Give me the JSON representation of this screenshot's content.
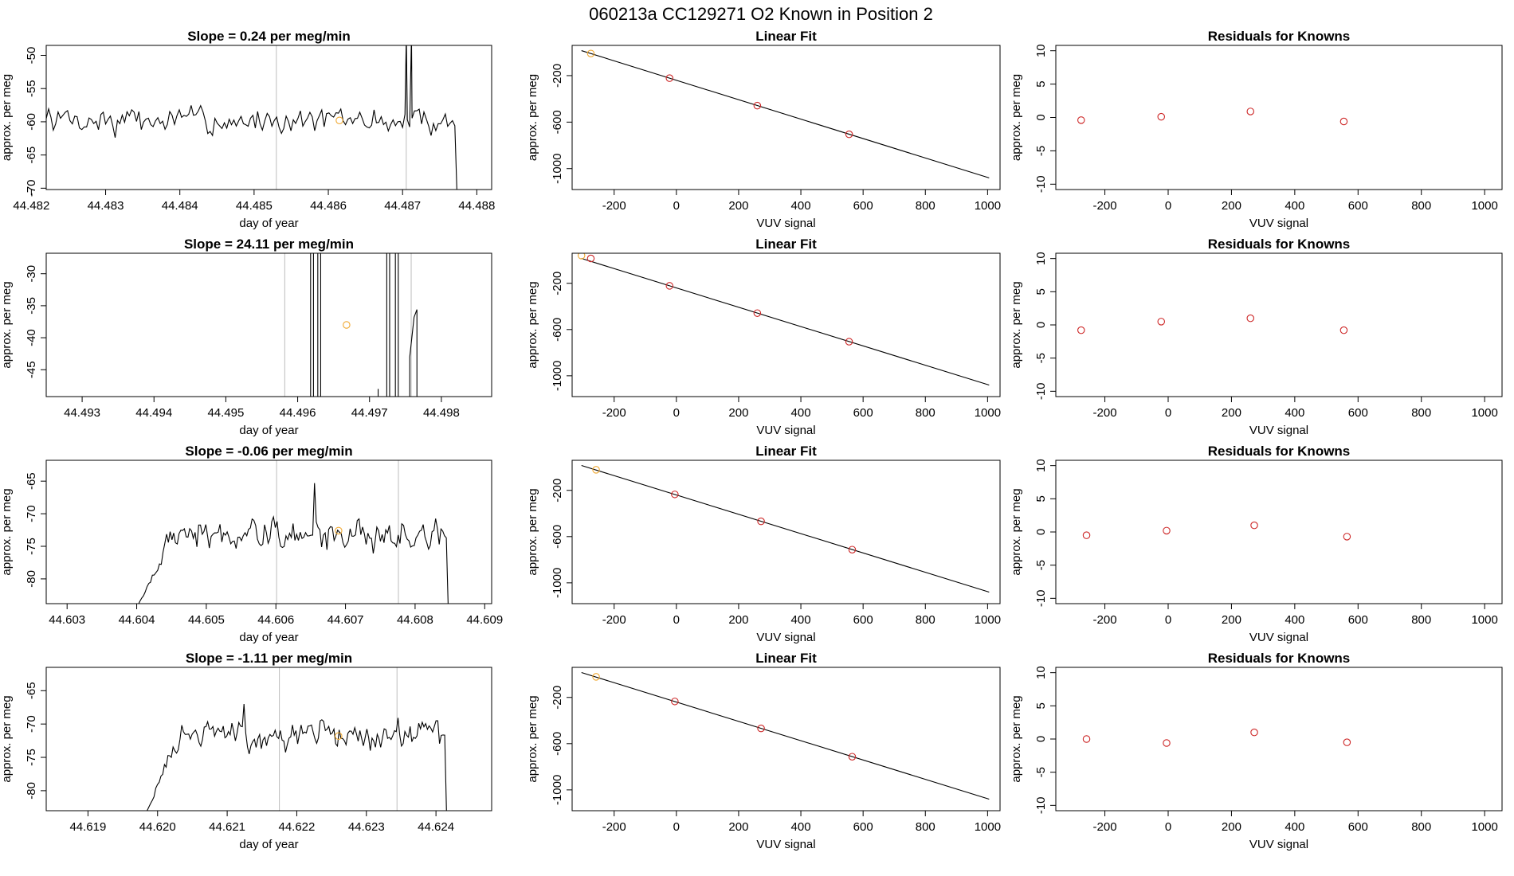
{
  "figure_title": "060213a      CC129271    O2 Known in Position  2",
  "colors": {
    "ink": "#000000",
    "vline": "#bdbdbd",
    "known_point": "#cd2626",
    "orange_point": "#f0a830"
  },
  "chart_data": [
    {
      "type": "line",
      "row": 0,
      "col": 0,
      "title": "Slope =  0.24  per meg/min",
      "xlabel": "day of year",
      "ylabel": "approx. per meg",
      "xlim": [
        44.4822,
        44.4882
      ],
      "ylim": [
        -70.2,
        -48.5
      ],
      "xticks": [
        "44.482",
        "44.483",
        "44.484",
        "44.485",
        "44.486",
        "44.487",
        "44.488"
      ],
      "yticks": [
        "-50",
        "-55",
        "-60",
        "-65",
        "-70"
      ],
      "vlines": [
        44.4853,
        44.48705
      ],
      "trace": {
        "start": 44.4822,
        "end": 44.4878,
        "base": -59.8,
        "amp": 2.4,
        "seed": 7,
        "spikes": [
          [
            44.48705,
            44.48712,
            -47
          ]
        ],
        "tail_from": 44.48772,
        "tail_to": -72
      },
      "points": [
        {
          "x": 44.48615,
          "y": -59.8,
          "color": "orange"
        }
      ]
    },
    {
      "type": "linear_fit",
      "row": 0,
      "col": 1,
      "title": "Linear Fit",
      "xlabel": "VUV signal",
      "ylabel": "approx. per meg",
      "xlim": [
        -335,
        1040
      ],
      "ylim": [
        -1180,
        60
      ],
      "xticks": [
        "-200",
        "0",
        "200",
        "400",
        "600",
        "800",
        "1000"
      ],
      "yticks": [
        "-200",
        "-600",
        "-1000"
      ],
      "line": {
        "x": [
          -305,
          1005
        ],
        "y": [
          15,
          -1080
        ]
      },
      "points": [
        {
          "x": -275,
          "y": -10,
          "color": "orange"
        },
        {
          "x": -22,
          "y": -222,
          "color": "red"
        },
        {
          "x": 260,
          "y": -458,
          "color": "red"
        },
        {
          "x": 555,
          "y": -705,
          "color": "red"
        }
      ]
    },
    {
      "type": "scatter",
      "row": 0,
      "col": 2,
      "title": "Residuals for Knowns",
      "xlabel": "VUV signal",
      "ylabel": "approx. per meg",
      "xlim": [
        -355,
        1055
      ],
      "ylim": [
        -10.8,
        10.8
      ],
      "xticks": [
        "-200",
        "0",
        "200",
        "400",
        "600",
        "800",
        "1000"
      ],
      "yticks": [
        "10",
        "5",
        "0",
        "-5",
        "-10"
      ],
      "points": [
        {
          "x": -275,
          "y": -0.4,
          "color": "red"
        },
        {
          "x": -22,
          "y": 0.1,
          "color": "red"
        },
        {
          "x": 260,
          "y": 0.9,
          "color": "red"
        },
        {
          "x": 555,
          "y": -0.6,
          "color": "red"
        }
      ]
    },
    {
      "type": "line",
      "row": 1,
      "col": 0,
      "title": "Slope =  24.11  per meg/min",
      "xlabel": "day of year",
      "ylabel": "approx. per meg",
      "xlim": [
        44.4925,
        44.4987
      ],
      "ylim": [
        -49.2,
        -26.8
      ],
      "xticks": [
        "44.493",
        "44.494",
        "44.495",
        "44.496",
        "44.497",
        "44.498"
      ],
      "yticks": [
        "-30",
        "-35",
        "-40",
        "-45"
      ],
      "vlines": [
        44.49582,
        44.49758
      ],
      "trace": {
        "type": "spikes",
        "bars": [
          [
            44.49618,
            44.49622
          ],
          [
            44.49628,
            44.49632
          ],
          [
            44.49724,
            44.49728
          ],
          [
            44.49736,
            44.4974
          ]
        ],
        "small": [
          [
            44.49712,
            -48.0
          ]
        ],
        "rise": [
          [
            44.49756,
            -43.0
          ],
          [
            44.49762,
            -36.8
          ],
          [
            44.49766,
            -35.6
          ]
        ]
      },
      "points": [
        {
          "x": 44.49668,
          "y": -38.0,
          "color": "orange"
        }
      ]
    },
    {
      "type": "linear_fit",
      "row": 1,
      "col": 1,
      "title": "Linear Fit",
      "xlabel": "VUV signal",
      "ylabel": "approx. per meg",
      "xlim": [
        -335,
        1040
      ],
      "ylim": [
        -1180,
        60
      ],
      "xticks": [
        "-200",
        "0",
        "200",
        "400",
        "600",
        "800",
        "1000"
      ],
      "yticks": [
        "-200",
        "-600",
        "-1000"
      ],
      "line": {
        "x": [
          -305,
          1005
        ],
        "y": [
          15,
          -1080
        ]
      },
      "points": [
        {
          "x": -305,
          "y": 40,
          "color": "orange"
        },
        {
          "x": -275,
          "y": 15,
          "color": "red"
        },
        {
          "x": -22,
          "y": -222,
          "color": "red"
        },
        {
          "x": 260,
          "y": -458,
          "color": "red"
        },
        {
          "x": 555,
          "y": -705,
          "color": "red"
        }
      ]
    },
    {
      "type": "scatter",
      "row": 1,
      "col": 2,
      "title": "Residuals for Knowns",
      "xlabel": "VUV signal",
      "ylabel": "approx. per meg",
      "xlim": [
        -355,
        1055
      ],
      "ylim": [
        -10.8,
        10.8
      ],
      "xticks": [
        "-200",
        "0",
        "200",
        "400",
        "600",
        "800",
        "1000"
      ],
      "yticks": [
        "10",
        "5",
        "0",
        "-5",
        "-10"
      ],
      "points": [
        {
          "x": -275,
          "y": -0.8,
          "color": "red"
        },
        {
          "x": -22,
          "y": 0.5,
          "color": "red"
        },
        {
          "x": 260,
          "y": 1.0,
          "color": "red"
        },
        {
          "x": 555,
          "y": -0.8,
          "color": "red"
        }
      ]
    },
    {
      "type": "line",
      "row": 2,
      "col": 0,
      "title": "Slope =  -0.06  per meg/min",
      "xlabel": "day of year",
      "ylabel": "approx. per meg",
      "xlim": [
        44.6027,
        44.6091
      ],
      "ylim": [
        -83.8,
        -61.8
      ],
      "xticks": [
        "44.603",
        "44.604",
        "44.605",
        "44.606",
        "44.607",
        "44.608",
        "44.609"
      ],
      "yticks": [
        "-65",
        "-70",
        "-75",
        "-80"
      ],
      "vlines": [
        44.60601,
        44.60776
      ],
      "trace": {
        "start": 44.60402,
        "end": 44.6085,
        "base": -73.2,
        "amp": 2.6,
        "seed": 19,
        "ramp_until": 44.6046,
        "ramp_from": -84,
        "peaks": [
          [
            44.60655,
            -65.3
          ]
        ],
        "tail_from": 44.60845,
        "tail_to": -84
      },
      "points": [
        {
          "x": 44.6069,
          "y": -72.6,
          "color": "orange"
        }
      ]
    },
    {
      "type": "linear_fit",
      "row": 2,
      "col": 1,
      "title": "Linear Fit",
      "xlabel": "VUV signal",
      "ylabel": "approx. per meg",
      "xlim": [
        -335,
        1040
      ],
      "ylim": [
        -1180,
        60
      ],
      "xticks": [
        "-200",
        "0",
        "200",
        "400",
        "600",
        "800",
        "1000"
      ],
      "yticks": [
        "-200",
        "-600",
        "-1000"
      ],
      "line": {
        "x": [
          -305,
          1005
        ],
        "y": [
          15,
          -1080
        ]
      },
      "points": [
        {
          "x": -258,
          "y": -22,
          "color": "orange"
        },
        {
          "x": -5,
          "y": -235,
          "color": "red"
        },
        {
          "x": 272,
          "y": -468,
          "color": "red"
        },
        {
          "x": 565,
          "y": -713,
          "color": "red"
        }
      ]
    },
    {
      "type": "scatter",
      "row": 2,
      "col": 2,
      "title": "Residuals for Knowns",
      "xlabel": "VUV signal",
      "ylabel": "approx. per meg",
      "xlim": [
        -355,
        1055
      ],
      "ylim": [
        -10.8,
        10.8
      ],
      "xticks": [
        "-200",
        "0",
        "200",
        "400",
        "600",
        "800",
        "1000"
      ],
      "yticks": [
        "10",
        "5",
        "0",
        "-5",
        "-10"
      ],
      "points": [
        {
          "x": -258,
          "y": -0.5,
          "color": "red"
        },
        {
          "x": -5,
          "y": 0.2,
          "color": "red"
        },
        {
          "x": 272,
          "y": 1.0,
          "color": "red"
        },
        {
          "x": 565,
          "y": -0.7,
          "color": "red"
        }
      ]
    },
    {
      "type": "line",
      "row": 3,
      "col": 0,
      "title": "Slope =  -1.11  per meg/min",
      "xlabel": "day of year",
      "ylabel": "approx. per meg",
      "xlim": [
        44.6184,
        44.6248
      ],
      "ylim": [
        -83.0,
        -61.5
      ],
      "xticks": [
        "44.619",
        "44.620",
        "44.621",
        "44.622",
        "44.623",
        "44.624"
      ],
      "yticks": [
        "-65",
        "-70",
        "-75",
        "-80"
      ],
      "vlines": [
        44.62175,
        44.62344
      ],
      "trace": {
        "start": 44.61985,
        "end": 44.6242,
        "base": -71.6,
        "amp": 2.5,
        "seed": 31,
        "ramp_until": 44.6204,
        "ramp_from": -83,
        "peaks": [
          [
            44.62125,
            -67.0
          ]
        ],
        "tail_from": 44.62415,
        "tail_to": -83
      },
      "points": [
        {
          "x": 44.6226,
          "y": -71.8,
          "color": "orange"
        }
      ]
    },
    {
      "type": "linear_fit",
      "row": 3,
      "col": 1,
      "title": "Linear Fit",
      "xlabel": "VUV signal",
      "ylabel": "approx. per meg",
      "xlim": [
        -335,
        1040
      ],
      "ylim": [
        -1180,
        60
      ],
      "xticks": [
        "-200",
        "0",
        "200",
        "400",
        "600",
        "800",
        "1000"
      ],
      "yticks": [
        "-200",
        "-600",
        "-1000"
      ],
      "line": {
        "x": [
          -305,
          1005
        ],
        "y": [
          15,
          -1080
        ]
      },
      "points": [
        {
          "x": -258,
          "y": -22,
          "color": "orange"
        },
        {
          "x": -5,
          "y": -235,
          "color": "red"
        },
        {
          "x": 272,
          "y": -468,
          "color": "red"
        },
        {
          "x": 565,
          "y": -713,
          "color": "red"
        }
      ]
    },
    {
      "type": "scatter",
      "row": 3,
      "col": 2,
      "title": "Residuals for Knowns",
      "xlabel": "VUV signal",
      "ylabel": "approx. per meg",
      "xlim": [
        -355,
        1055
      ],
      "ylim": [
        -10.8,
        10.8
      ],
      "xticks": [
        "-200",
        "0",
        "200",
        "400",
        "600",
        "800",
        "1000"
      ],
      "yticks": [
        "10",
        "5",
        "0",
        "-5",
        "-10"
      ],
      "points": [
        {
          "x": -258,
          "y": 0.0,
          "color": "red"
        },
        {
          "x": -5,
          "y": -0.6,
          "color": "red"
        },
        {
          "x": 272,
          "y": 1.0,
          "color": "red"
        },
        {
          "x": 565,
          "y": -0.5,
          "color": "red"
        }
      ]
    }
  ]
}
